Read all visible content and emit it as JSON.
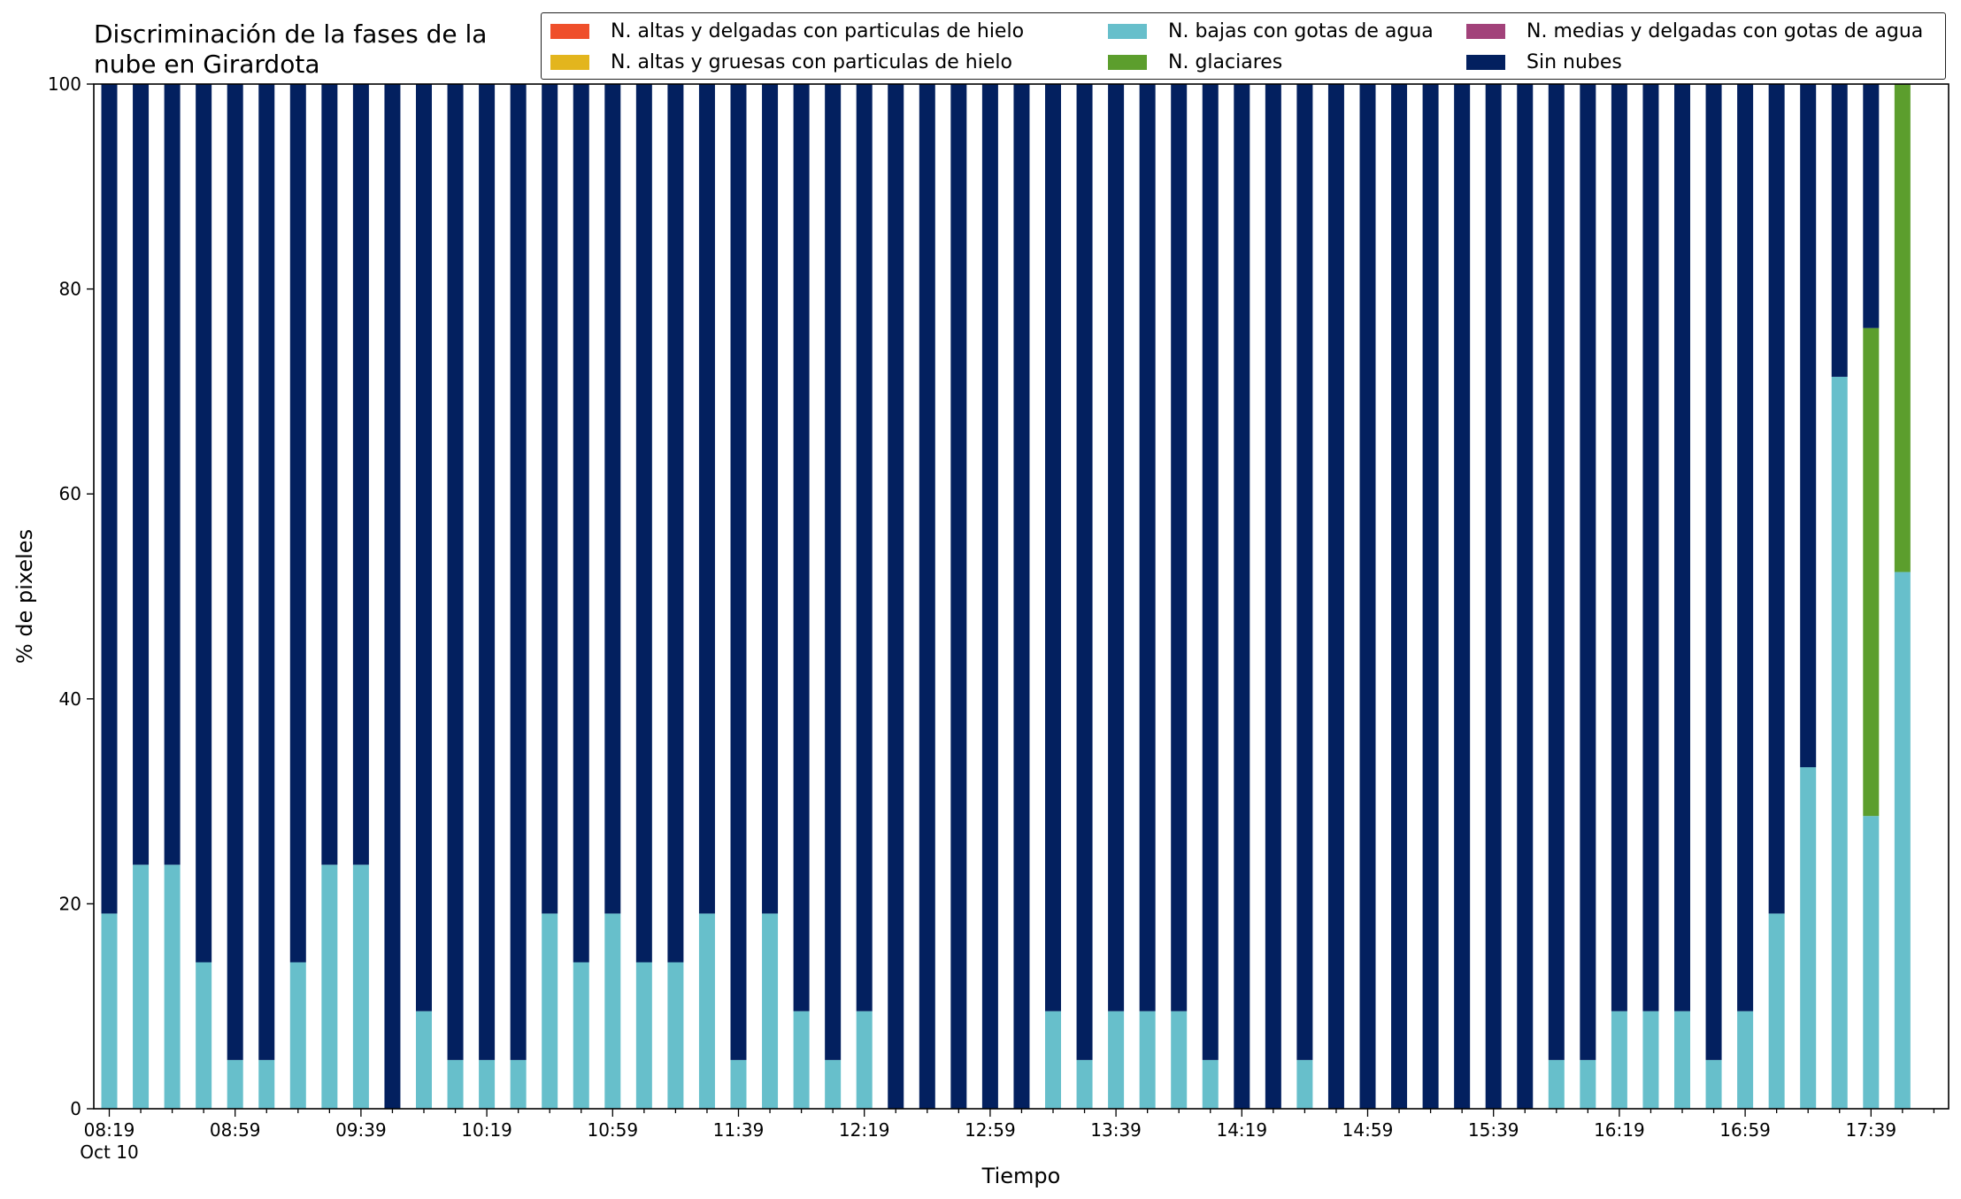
{
  "chart_data": {
    "type": "bar",
    "stacked": true,
    "title": "Discriminación de la fases de la nube en Girardota",
    "title_lines": [
      "Discriminación de la fases de la",
      "nube en Girardota"
    ],
    "xlabel": "Tiempo",
    "ylabel": "% de pixeles",
    "ylim": [
      0,
      100
    ],
    "yticks": [
      0,
      20,
      40,
      60,
      80,
      100
    ],
    "grid": false,
    "legend_position": "top-right",
    "x_tick_labels": [
      "08:19",
      "08:59",
      "09:39",
      "10:19",
      "10:59",
      "11:39",
      "12:19",
      "12:59",
      "13:39",
      "14:19",
      "14:59",
      "15:39",
      "16:19",
      "16:59",
      "17:39"
    ],
    "x_date_label": "Oct 10",
    "categories": [
      "08:19",
      "08:29",
      "08:39",
      "08:49",
      "08:59",
      "09:09",
      "09:19",
      "09:29",
      "09:39",
      "09:49",
      "09:59",
      "10:09",
      "10:19",
      "10:29",
      "10:39",
      "10:49",
      "10:59",
      "11:09",
      "11:19",
      "11:29",
      "11:39",
      "11:49",
      "11:59",
      "12:09",
      "12:19",
      "12:29",
      "12:39",
      "12:49",
      "12:59",
      "13:09",
      "13:19",
      "13:29",
      "13:39",
      "13:49",
      "13:59",
      "14:09",
      "14:19",
      "14:29",
      "14:39",
      "14:49",
      "14:59",
      "15:09",
      "15:19",
      "15:29",
      "15:39",
      "15:49",
      "15:59",
      "16:09",
      "16:19",
      "16:29",
      "16:39",
      "16:49",
      "16:59",
      "17:09",
      "17:19",
      "17:29",
      "17:39",
      "17:49"
    ],
    "series": [
      {
        "name": "N. altas y delgadas con particulas de hielo",
        "color": "#ef4f2b",
        "values": [
          0,
          0,
          0,
          0,
          0,
          0,
          0,
          0,
          0,
          0,
          0,
          0,
          0,
          0,
          0,
          0,
          0,
          0,
          0,
          0,
          0,
          0,
          0,
          0,
          0,
          0,
          0,
          0,
          0,
          0,
          0,
          0,
          0,
          0,
          0,
          0,
          0,
          0,
          0,
          0,
          0,
          0,
          0,
          0,
          0,
          0,
          0,
          0,
          0,
          0,
          0,
          0,
          0,
          0,
          0,
          0,
          0,
          0
        ]
      },
      {
        "name": "N. altas y gruesas con particulas de hielo",
        "color": "#e3b51d",
        "values": [
          0,
          0,
          0,
          0,
          0,
          0,
          0,
          0,
          0,
          0,
          0,
          0,
          0,
          0,
          0,
          0,
          0,
          0,
          0,
          0,
          0,
          0,
          0,
          0,
          0,
          0,
          0,
          0,
          0,
          0,
          0,
          0,
          0,
          0,
          0,
          0,
          0,
          0,
          0,
          0,
          0,
          0,
          0,
          0,
          0,
          0,
          0,
          0,
          0,
          0,
          0,
          0,
          0,
          0,
          0,
          0,
          0,
          0
        ]
      },
      {
        "name": "N. bajas con gotas de agua",
        "color": "#67bfcb",
        "values": [
          19.05,
          23.81,
          23.81,
          14.29,
          4.76,
          4.76,
          14.29,
          23.81,
          23.81,
          0,
          9.52,
          4.76,
          4.76,
          4.76,
          19.05,
          14.29,
          19.05,
          14.29,
          14.29,
          19.05,
          4.76,
          19.05,
          9.52,
          4.76,
          9.52,
          0,
          0,
          0,
          0,
          0,
          9.52,
          4.76,
          9.52,
          9.52,
          9.52,
          4.76,
          0,
          0,
          4.76,
          0,
          0,
          0,
          0,
          0,
          0,
          0,
          4.76,
          4.76,
          9.52,
          9.52,
          9.52,
          4.76,
          9.52,
          19.05,
          33.33,
          71.43,
          28.57,
          52.38
        ]
      },
      {
        "name": "N. glaciares",
        "color": "#5c9e2d",
        "values": [
          0,
          0,
          0,
          0,
          0,
          0,
          0,
          0,
          0,
          0,
          0,
          0,
          0,
          0,
          0,
          0,
          0,
          0,
          0,
          0,
          0,
          0,
          0,
          0,
          0,
          0,
          0,
          0,
          0,
          0,
          0,
          0,
          0,
          0,
          0,
          0,
          0,
          0,
          0,
          0,
          0,
          0,
          0,
          0,
          0,
          0,
          0,
          0,
          0,
          0,
          0,
          0,
          0,
          0,
          0,
          0,
          47.62,
          47.62
        ]
      },
      {
        "name": "N. medias y delgadas con gotas de agua",
        "color": "#a2427a",
        "values": [
          0,
          0,
          0,
          0,
          0,
          0,
          0,
          0,
          0,
          0,
          0,
          0,
          0,
          0,
          0,
          0,
          0,
          0,
          0,
          0,
          0,
          0,
          0,
          0,
          0,
          0,
          0,
          0,
          0,
          0,
          0,
          0,
          0,
          0,
          0,
          0,
          0,
          0,
          0,
          0,
          0,
          0,
          0,
          0,
          0,
          0,
          0,
          0,
          0,
          0,
          0,
          0,
          0,
          0,
          0,
          0,
          0,
          0
        ]
      },
      {
        "name": "Sin nubes",
        "color": "#03205f",
        "values": [
          80.95,
          76.19,
          76.19,
          85.71,
          95.24,
          95.24,
          85.71,
          76.19,
          76.19,
          100,
          90.48,
          95.24,
          95.24,
          95.24,
          80.95,
          85.71,
          80.95,
          85.71,
          85.71,
          80.95,
          95.24,
          80.95,
          90.48,
          95.24,
          90.48,
          100,
          100,
          100,
          100,
          100,
          90.48,
          95.24,
          90.48,
          90.48,
          90.48,
          95.24,
          100,
          100,
          95.24,
          100,
          100,
          100,
          100,
          100,
          100,
          100,
          95.24,
          95.24,
          90.48,
          90.48,
          90.48,
          95.24,
          90.48,
          80.95,
          66.67,
          28.57,
          23.81,
          0
        ]
      }
    ]
  }
}
